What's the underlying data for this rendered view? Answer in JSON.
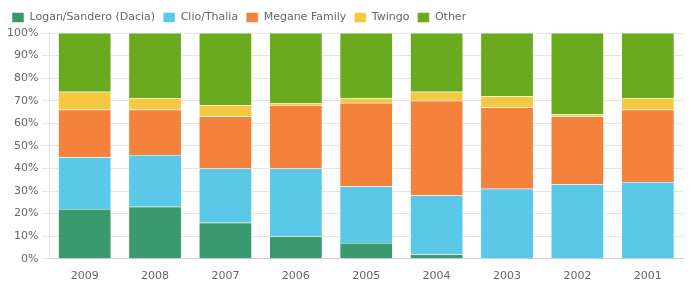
{
  "chart_data": {
    "type": "bar",
    "categories": [
      "2009",
      "2008",
      "2007",
      "2006",
      "2005",
      "2004",
      "2003",
      "2002",
      "2001"
    ],
    "series": [
      {
        "name": "Logan/Sandero (Dacia)",
        "color": "#3a9a6e",
        "values": [
          22,
          23,
          16,
          10,
          7,
          2,
          0,
          0,
          0
        ]
      },
      {
        "name": "Clio/Thalia",
        "color": "#5bc8e8",
        "values": [
          23,
          23,
          24,
          30,
          25,
          26,
          31,
          33,
          34
        ]
      },
      {
        "name": "Megane Family",
        "color": "#f4823c",
        "values": [
          21,
          20,
          23,
          28,
          37,
          42,
          36,
          30,
          32
        ]
      },
      {
        "name": "Twingo",
        "color": "#f5c842",
        "values": [
          8,
          5,
          5,
          1,
          2,
          4,
          5,
          1,
          5
        ]
      },
      {
        "name": "Other",
        "color": "#6aaa1e",
        "values": [
          26,
          29,
          32,
          31,
          29,
          26,
          28,
          36,
          29
        ]
      }
    ],
    "ylim": [
      0,
      100
    ],
    "yticks": [
      {
        "value": 0,
        "label": "0%"
      },
      {
        "value": 10,
        "label": "10%"
      },
      {
        "value": 20,
        "label": "20%"
      },
      {
        "value": 30,
        "label": "30%"
      },
      {
        "value": 40,
        "label": "40%"
      },
      {
        "value": 50,
        "label": "50%"
      },
      {
        "value": 60,
        "label": "60%"
      },
      {
        "value": 70,
        "label": "70%"
      },
      {
        "value": 80,
        "label": "80%"
      },
      {
        "value": 90,
        "label": "90%"
      },
      {
        "value": 100,
        "label": "100%"
      }
    ],
    "stacked": true,
    "grid": true,
    "legend": "top-left"
  }
}
